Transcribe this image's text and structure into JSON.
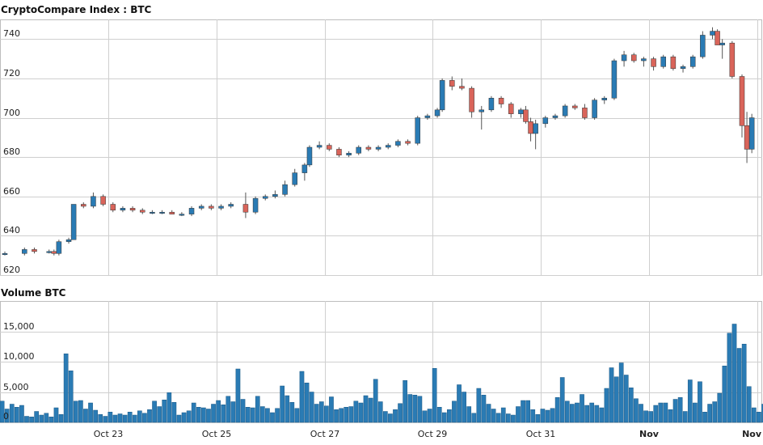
{
  "colors": {
    "up": "#2a7bb4",
    "down": "#d9645a",
    "volume": "#2a7bb4",
    "grid": "#cfcfcf"
  },
  "chart_data": [
    {
      "type": "candlestick",
      "title": "CryptoCompare Index : BTC",
      "ylim": [
        620,
        750
      ],
      "yticks": [
        620,
        640,
        660,
        680,
        700,
        720,
        740
      ],
      "x_range": [
        0,
        152
      ],
      "xticks": [
        {
          "label": "Oct 23",
          "x": 20
        },
        {
          "label": "Oct 25",
          "x": 42
        },
        {
          "label": "Oct 27",
          "x": 64
        },
        {
          "label": "Oct 29",
          "x": 86
        },
        {
          "label": "Oct 31",
          "x": 108
        },
        {
          "label": "Nov",
          "x": 130,
          "bold": true
        },
        {
          "label": "Nov",
          "x": 152,
          "bold": true
        }
      ],
      "grid": true,
      "ohlc_points": [
        [
          0,
          631,
          632,
          630,
          631
        ],
        [
          4,
          631,
          634,
          630,
          633
        ],
        [
          6,
          633,
          634,
          631,
          632
        ],
        [
          9,
          632,
          633,
          631,
          632
        ],
        [
          10,
          632,
          633,
          630,
          631
        ],
        [
          11,
          631,
          638,
          630,
          637
        ],
        [
          13,
          637,
          639,
          636,
          638
        ],
        [
          14,
          638,
          656,
          638,
          656
        ],
        [
          16,
          656,
          657,
          654,
          655
        ],
        [
          18,
          655,
          662,
          654,
          660
        ],
        [
          20,
          660,
          661,
          655,
          656
        ],
        [
          22,
          656,
          657,
          652,
          653
        ],
        [
          24,
          653,
          655,
          652,
          654
        ],
        [
          26,
          654,
          655,
          652,
          653
        ],
        [
          28,
          653,
          654,
          651,
          652
        ],
        [
          30,
          652,
          653,
          651,
          652
        ],
        [
          32,
          652,
          653,
          651,
          652
        ],
        [
          34,
          652,
          653,
          651,
          651
        ],
        [
          36,
          651,
          652,
          650,
          651
        ],
        [
          38,
          651,
          655,
          650,
          654
        ],
        [
          40,
          654,
          656,
          653,
          655
        ],
        [
          42,
          655,
          656,
          653,
          654
        ],
        [
          44,
          654,
          656,
          653,
          655
        ],
        [
          46,
          655,
          657,
          654,
          656
        ],
        [
          49,
          656,
          662,
          649,
          652
        ],
        [
          51,
          652,
          660,
          651,
          659
        ],
        [
          53,
          659,
          661,
          658,
          660
        ],
        [
          55,
          660,
          663,
          659,
          661
        ],
        [
          57,
          661,
          668,
          660,
          666
        ],
        [
          59,
          666,
          674,
          665,
          672
        ],
        [
          61,
          672,
          677,
          668,
          676
        ],
        [
          62,
          676,
          686,
          675,
          685
        ],
        [
          64,
          685,
          688,
          684,
          686
        ],
        [
          66,
          686,
          687,
          683,
          684
        ],
        [
          68,
          684,
          685,
          680,
          681
        ],
        [
          70,
          681,
          683,
          680,
          682
        ],
        [
          72,
          682,
          686,
          681,
          685
        ],
        [
          74,
          685,
          686,
          683,
          684
        ],
        [
          76,
          684,
          686,
          683,
          685
        ],
        [
          78,
          685,
          687,
          684,
          686
        ],
        [
          80,
          686,
          689,
          685,
          688
        ],
        [
          82,
          688,
          689,
          686,
          687
        ],
        [
          84,
          687,
          701,
          686,
          700
        ],
        [
          86,
          700,
          702,
          699,
          701
        ],
        [
          88,
          701,
          705,
          700,
          704
        ],
        [
          89,
          704,
          720,
          703,
          719
        ],
        [
          91,
          719,
          721,
          714,
          716
        ],
        [
          93,
          716,
          720,
          714,
          715
        ],
        [
          95,
          715,
          716,
          700,
          703
        ],
        [
          97,
          703,
          706,
          694,
          704
        ],
        [
          99,
          704,
          711,
          703,
          710
        ],
        [
          101,
          710,
          711,
          705,
          707
        ],
        [
          103,
          707,
          708,
          700,
          702
        ],
        [
          105,
          702,
          705,
          700,
          704
        ],
        [
          106,
          704,
          706,
          697,
          698
        ],
        [
          107,
          698,
          700,
          688,
          692
        ],
        [
          108,
          692,
          699,
          684,
          697
        ],
        [
          110,
          697,
          701,
          695,
          700
        ],
        [
          112,
          700,
          702,
          699,
          701
        ],
        [
          114,
          701,
          707,
          700,
          706
        ],
        [
          116,
          706,
          707,
          704,
          705
        ],
        [
          118,
          705,
          707,
          699,
          700
        ],
        [
          120,
          700,
          710,
          699,
          709
        ],
        [
          122,
          709,
          711,
          707,
          710
        ],
        [
          124,
          710,
          730,
          709,
          729
        ],
        [
          126,
          729,
          734,
          726,
          732
        ],
        [
          128,
          732,
          733,
          728,
          729
        ],
        [
          130,
          729,
          731,
          726,
          730
        ],
        [
          132,
          730,
          731,
          724,
          726
        ],
        [
          134,
          726,
          732,
          725,
          731
        ],
        [
          136,
          731,
          732,
          724,
          725
        ],
        [
          138,
          725,
          727,
          723,
          726
        ],
        [
          140,
          726,
          732,
          725,
          731
        ],
        [
          142,
          731,
          744,
          730,
          742
        ],
        [
          144,
          742,
          746,
          740,
          744
        ],
        [
          145,
          744,
          745,
          738,
          737
        ],
        [
          146,
          737,
          740,
          730,
          738
        ],
        [
          148,
          738,
          739,
          720,
          721
        ],
        [
          150,
          721,
          722,
          690,
          696
        ],
        [
          151,
          696,
          703,
          677,
          684
        ],
        [
          152,
          684,
          702,
          682,
          700
        ]
      ]
    },
    {
      "type": "bar",
      "title": "Volume BTC",
      "ylim": [
        0,
        20000
      ],
      "yticks": [
        0,
        5000,
        10000,
        15000
      ],
      "ytick_labels": [
        "0",
        "5,000",
        "10,000",
        "15,000"
      ],
      "x_range": [
        0,
        152
      ],
      "grid": true,
      "volume_points": [
        [
          0,
          3500
        ],
        [
          1,
          2200
        ],
        [
          2,
          3000
        ],
        [
          3,
          2500
        ],
        [
          4,
          2800
        ],
        [
          5,
          1000
        ],
        [
          6,
          900
        ],
        [
          7,
          1800
        ],
        [
          8,
          1200
        ],
        [
          9,
          1500
        ],
        [
          10,
          900
        ],
        [
          11,
          2400
        ],
        [
          12,
          1300
        ],
        [
          13,
          11300
        ],
        [
          14,
          8500
        ],
        [
          15,
          3500
        ],
        [
          16,
          3600
        ],
        [
          17,
          2200
        ],
        [
          18,
          3200
        ],
        [
          19,
          2000
        ],
        [
          20,
          1300
        ],
        [
          21,
          1000
        ],
        [
          22,
          1700
        ],
        [
          23,
          1200
        ],
        [
          24,
          1400
        ],
        [
          25,
          1200
        ],
        [
          26,
          1700
        ],
        [
          27,
          1200
        ],
        [
          28,
          1900
        ],
        [
          29,
          1500
        ],
        [
          30,
          2100
        ],
        [
          31,
          3500
        ],
        [
          32,
          2600
        ],
        [
          33,
          3700
        ],
        [
          34,
          4900
        ],
        [
          35,
          3300
        ],
        [
          36,
          1200
        ],
        [
          37,
          1600
        ],
        [
          38,
          1900
        ],
        [
          39,
          3200
        ],
        [
          40,
          2500
        ],
        [
          41,
          2400
        ],
        [
          42,
          2200
        ],
        [
          43,
          3000
        ],
        [
          44,
          3600
        ],
        [
          45,
          2900
        ],
        [
          46,
          4300
        ],
        [
          47,
          3400
        ],
        [
          48,
          8800
        ],
        [
          49,
          3800
        ],
        [
          50,
          2500
        ],
        [
          51,
          2400
        ],
        [
          52,
          4300
        ],
        [
          53,
          2600
        ],
        [
          54,
          2300
        ],
        [
          55,
          1600
        ],
        [
          56,
          2300
        ],
        [
          57,
          6000
        ],
        [
          58,
          4400
        ],
        [
          59,
          3300
        ],
        [
          60,
          2300
        ],
        [
          61,
          8400
        ],
        [
          62,
          6500
        ],
        [
          63,
          5000
        ],
        [
          64,
          3000
        ],
        [
          65,
          3400
        ],
        [
          66,
          2700
        ],
        [
          67,
          4200
        ],
        [
          68,
          2100
        ],
        [
          69,
          2300
        ],
        [
          70,
          2500
        ],
        [
          71,
          2600
        ],
        [
          72,
          3500
        ],
        [
          73,
          3200
        ],
        [
          74,
          4400
        ],
        [
          75,
          4000
        ],
        [
          76,
          7100
        ],
        [
          77,
          3400
        ],
        [
          78,
          1800
        ],
        [
          79,
          1400
        ],
        [
          80,
          2100
        ],
        [
          81,
          3100
        ],
        [
          82,
          6900
        ],
        [
          83,
          4600
        ],
        [
          84,
          4500
        ],
        [
          85,
          4300
        ],
        [
          86,
          1900
        ],
        [
          87,
          2200
        ],
        [
          88,
          8900
        ],
        [
          89,
          2500
        ],
        [
          90,
          1600
        ],
        [
          91,
          2100
        ],
        [
          92,
          3500
        ],
        [
          93,
          6200
        ],
        [
          94,
          5000
        ],
        [
          95,
          2600
        ],
        [
          96,
          1500
        ],
        [
          97,
          5600
        ],
        [
          98,
          4500
        ],
        [
          99,
          3000
        ],
        [
          100,
          2200
        ],
        [
          101,
          1500
        ],
        [
          102,
          2400
        ],
        [
          103,
          1400
        ],
        [
          104,
          1200
        ],
        [
          105,
          2600
        ],
        [
          106,
          3600
        ],
        [
          107,
          3600
        ],
        [
          108,
          2100
        ],
        [
          109,
          1300
        ],
        [
          110,
          2200
        ],
        [
          111,
          2000
        ],
        [
          112,
          2300
        ],
        [
          113,
          4100
        ],
        [
          114,
          7400
        ],
        [
          115,
          3500
        ],
        [
          116,
          3000
        ],
        [
          117,
          3200
        ],
        [
          118,
          4600
        ],
        [
          119,
          2800
        ],
        [
          120,
          3200
        ],
        [
          121,
          2800
        ],
        [
          122,
          2400
        ],
        [
          123,
          5600
        ],
        [
          124,
          9000
        ],
        [
          125,
          7500
        ],
        [
          126,
          9800
        ],
        [
          127,
          7800
        ],
        [
          128,
          5700
        ],
        [
          129,
          3900
        ],
        [
          130,
          3000
        ],
        [
          131,
          1900
        ],
        [
          132,
          1800
        ],
        [
          133,
          2800
        ],
        [
          134,
          3200
        ],
        [
          135,
          3200
        ],
        [
          136,
          2100
        ],
        [
          137,
          3800
        ],
        [
          138,
          4100
        ],
        [
          139,
          1800
        ],
        [
          140,
          7000
        ],
        [
          141,
          3200
        ],
        [
          142,
          6700
        ],
        [
          143,
          1700
        ],
        [
          144,
          3000
        ],
        [
          145,
          3400
        ],
        [
          146,
          4800
        ],
        [
          147,
          9300
        ],
        [
          148,
          14700
        ],
        [
          149,
          16200
        ],
        [
          150,
          12200
        ],
        [
          151,
          12900
        ],
        [
          152,
          5900
        ],
        [
          153,
          2400
        ],
        [
          154,
          1700
        ],
        [
          155,
          3000
        ]
      ]
    }
  ]
}
